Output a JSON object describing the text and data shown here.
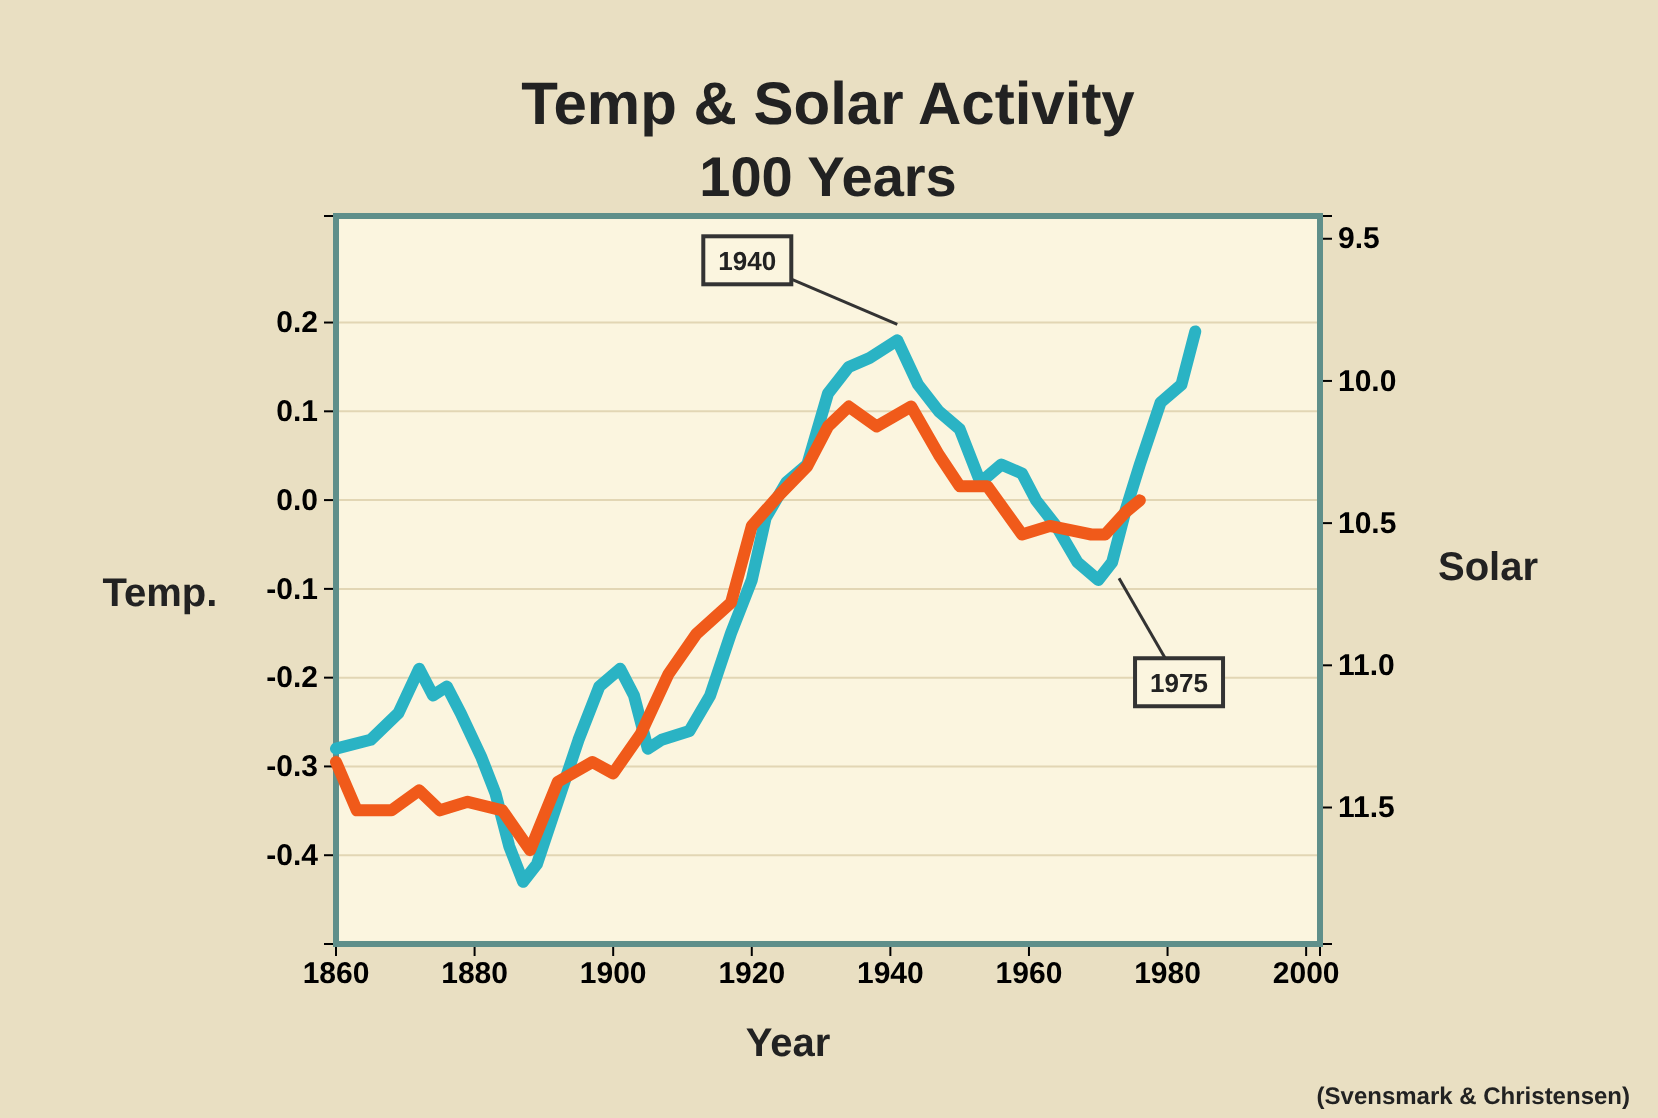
{
  "chart_data": {
    "type": "line",
    "title": "Temp & Solar Activity",
    "subtitle": "100 Years",
    "xlabel": "Year",
    "ylabel": "Temp.",
    "y2label": "Solar",
    "xlim": [
      1860,
      2002
    ],
    "xticks": [
      1860,
      1880,
      1900,
      1920,
      1940,
      1960,
      1980,
      2000
    ],
    "ylim": [
      -0.5,
      0.32
    ],
    "yticks": [
      {
        "value": -0.4,
        "label": "-0.4"
      },
      {
        "value": -0.3,
        "label": "-0.3"
      },
      {
        "value": -0.2,
        "label": "-0.2"
      },
      {
        "value": -0.1,
        "label": "-0.1"
      },
      {
        "value": 0,
        "label": "0.0"
      },
      {
        "value": 0.1,
        "label": "0.1"
      },
      {
        "value": 0.2,
        "label": "0.2"
      }
    ],
    "y2lim": [
      11.98,
      9.42
    ],
    "y2ticks": [
      9.5,
      {
        "value": 10,
        "label": "10.0"
      },
      10.5,
      {
        "value": 11,
        "label": "11.0"
      },
      11.5
    ],
    "grid": "y",
    "line_style": "solid",
    "marker": "none",
    "series": [
      {
        "color": "#2ab3c4",
        "x": [
          1860,
          1865,
          1869,
          1872,
          1874,
          1876,
          1878,
          1881,
          1883,
          1885,
          1887,
          1889,
          1892,
          1895,
          1898,
          1901,
          1903,
          1905,
          1907,
          1911,
          1914,
          1917,
          1920,
          1922,
          1925,
          1928,
          1931,
          1934,
          1937,
          1941,
          1944,
          1947,
          1950,
          1953,
          1956,
          1959,
          1961,
          1964,
          1967,
          1970,
          1972,
          1974,
          1976,
          1979,
          1982,
          1984
        ],
        "values": [
          -0.28,
          -0.27,
          -0.24,
          -0.19,
          -0.22,
          -0.21,
          -0.24,
          -0.29,
          -0.33,
          -0.39,
          -0.43,
          -0.41,
          -0.34,
          -0.27,
          -0.21,
          -0.19,
          -0.22,
          -0.28,
          -0.27,
          -0.26,
          -0.22,
          -0.15,
          -0.09,
          -0.02,
          0.02,
          0.04,
          0.12,
          0.15,
          0.16,
          0.18,
          0.13,
          0.1,
          0.08,
          0.02,
          0.04,
          0.03,
          0,
          -0.03,
          -0.07,
          -0.09,
          -0.07,
          -0.01,
          0.04,
          0.11,
          0.13,
          0.19
        ]
      },
      {
        "color": "#f05a1a",
        "axis": "y2",
        "x": [
          1860,
          1863,
          1868,
          1872,
          1875,
          1879,
          1884,
          1888,
          1892,
          1897,
          1900,
          1904,
          1908,
          1912,
          1917,
          1920,
          1924,
          1928,
          1931,
          1934,
          1938,
          1943,
          1947,
          1950,
          1954,
          1959,
          1963,
          1969,
          1971,
          1974,
          1976
        ],
        "values": [
          11.34,
          11.51,
          11.51,
          11.44,
          11.51,
          11.48,
          11.51,
          11.65,
          11.41,
          11.34,
          11.38,
          11.24,
          11.03,
          10.89,
          10.78,
          10.51,
          10.4,
          10.3,
          10.16,
          10.09,
          10.16,
          10.09,
          10.26,
          10.37,
          10.37,
          10.54,
          10.51,
          10.54,
          10.54,
          10.46,
          10.42
        ]
      }
    ],
    "annotations": [
      {
        "text": "1940",
        "x": 1941,
        "y": 0.18
      },
      {
        "text": "1975",
        "x": 1973,
        "y": -0.07
      },
      "(Svensmark & Christensen)"
    ]
  }
}
